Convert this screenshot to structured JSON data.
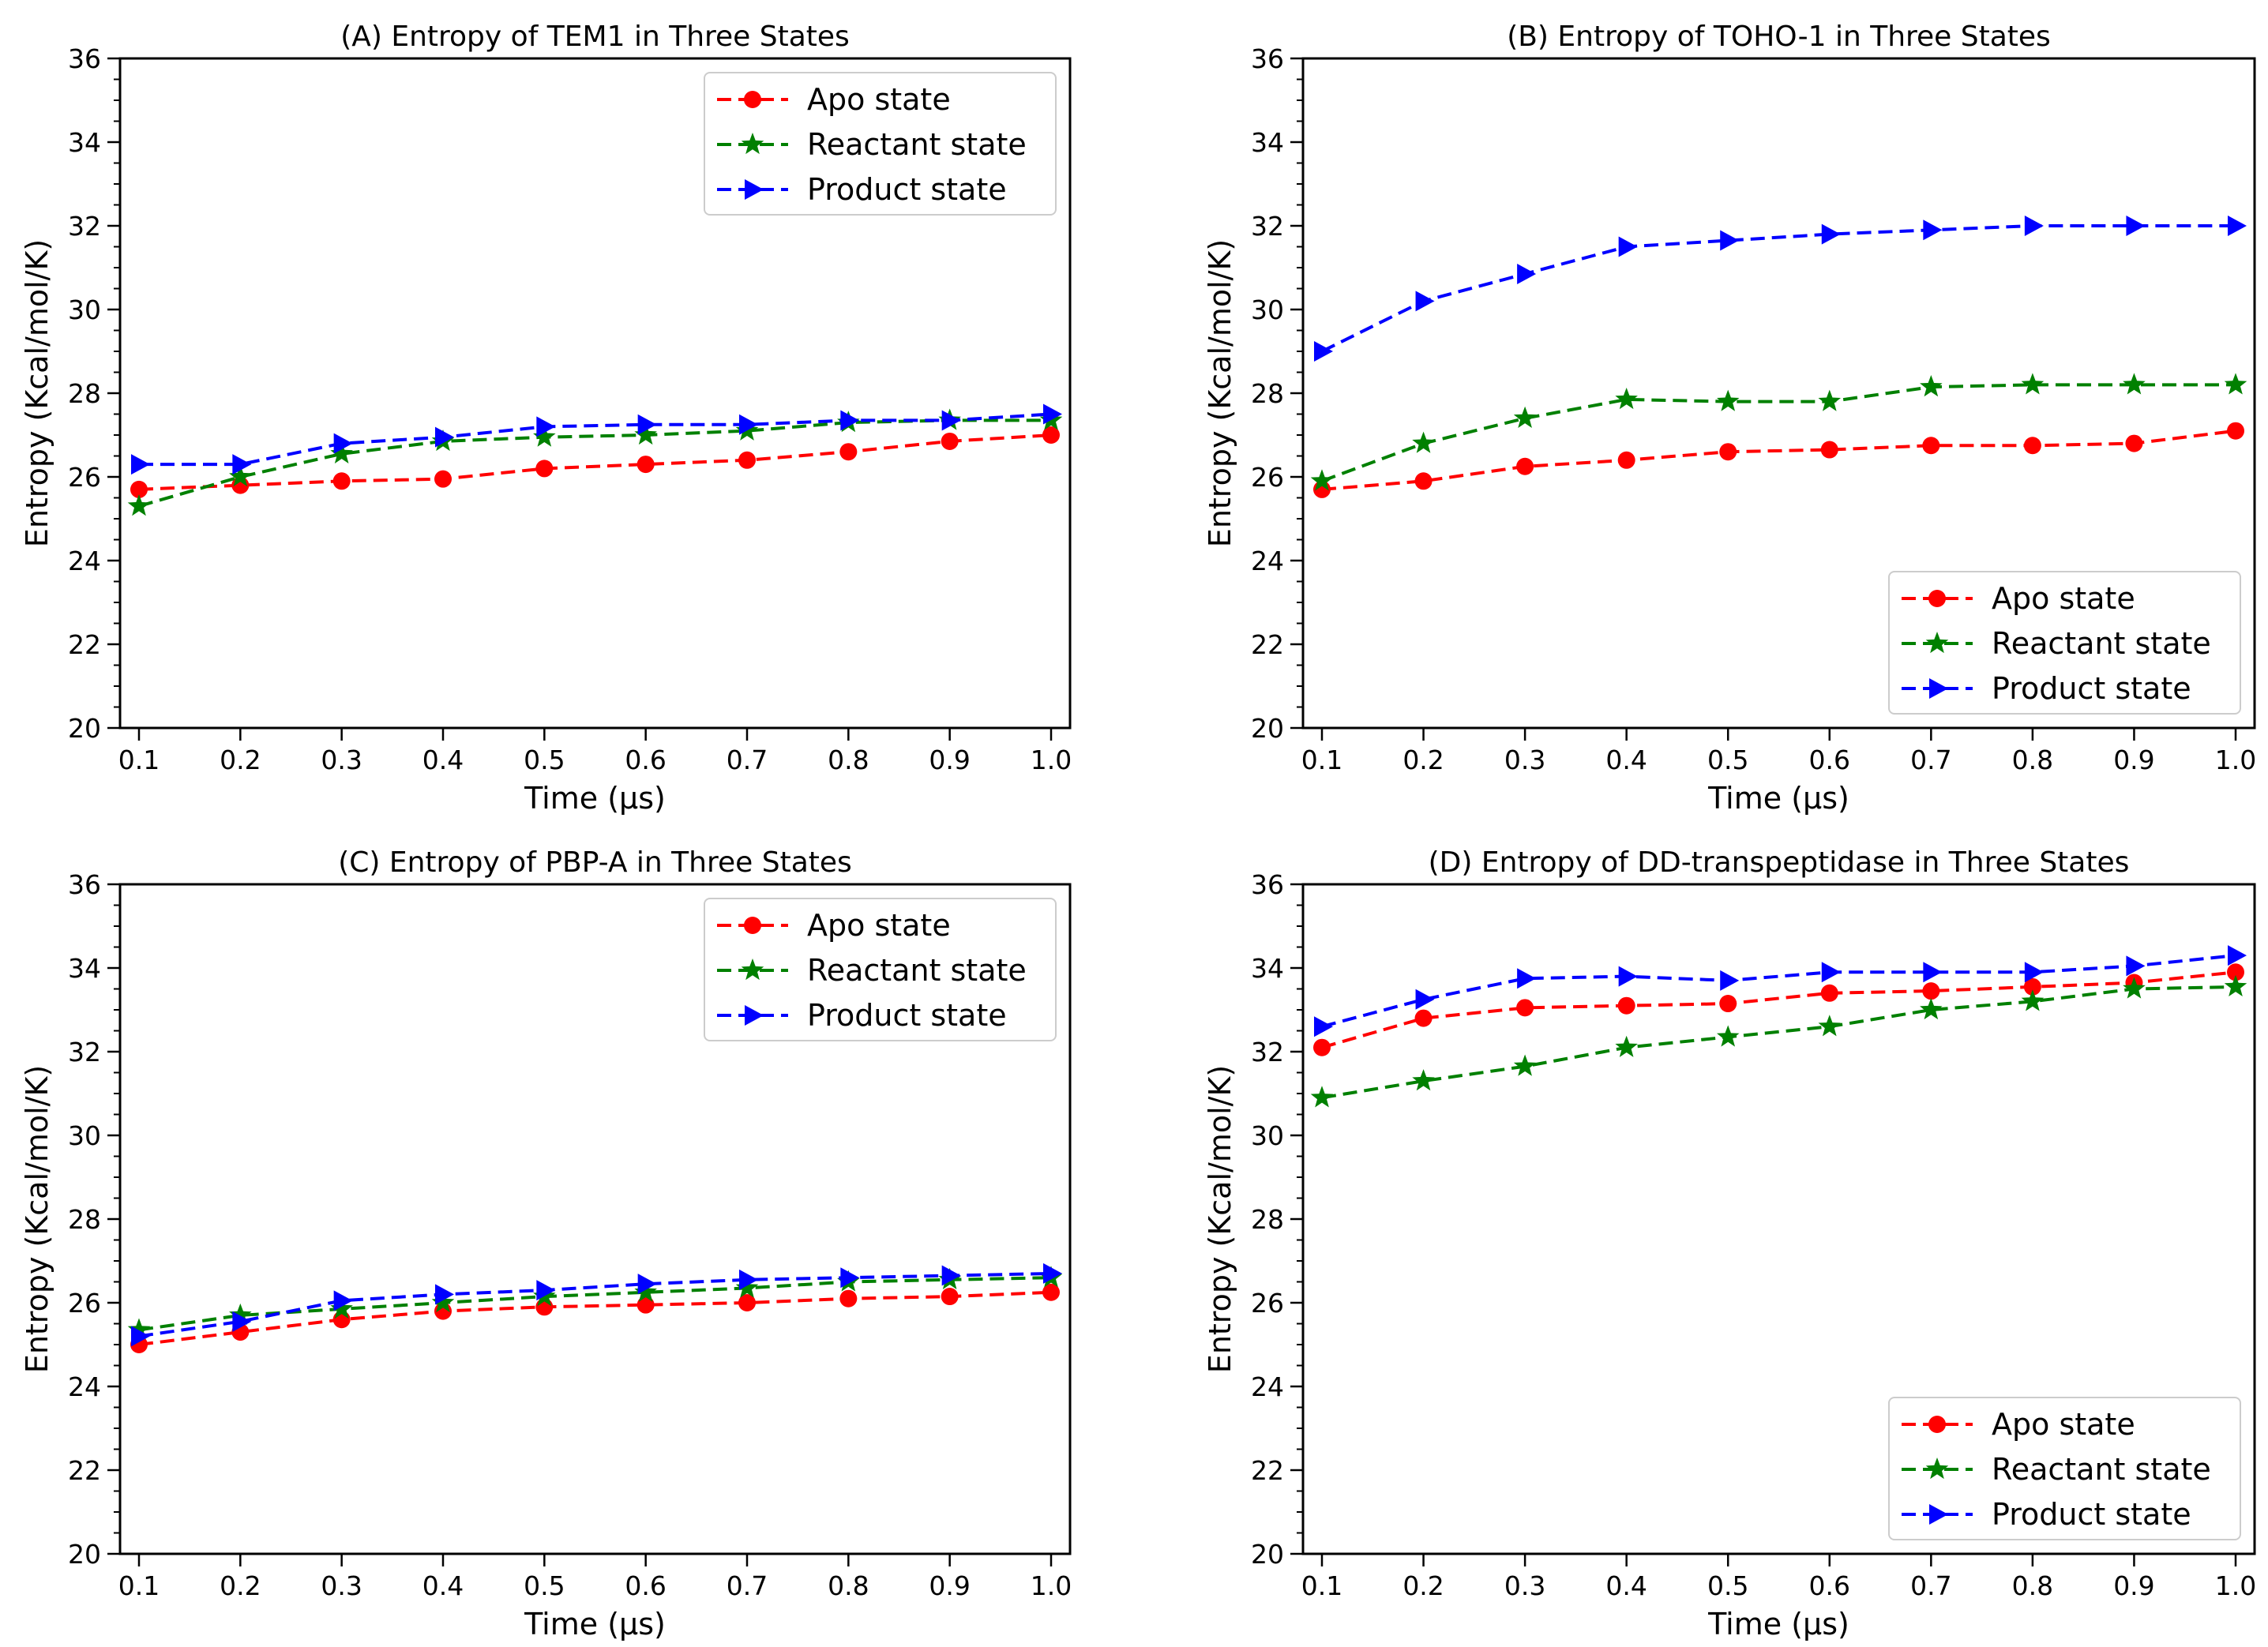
{
  "figure": {
    "x_label": "Time (µs)",
    "y_label": "Entropy (Kcal/mol/K)"
  },
  "series_styles": [
    {
      "key": "apo",
      "name": "Apo state",
      "color": "#ff0000",
      "marker": "circle"
    },
    {
      "key": "reactant",
      "name": "Reactant state",
      "color": "#008000",
      "marker": "star"
    },
    {
      "key": "product",
      "name": "Product state",
      "color": "#0000ff",
      "marker": "triangle-right"
    }
  ],
  "chart_data": [
    {
      "type": "line",
      "title": "(A) Entropy of TEM1 in Three States",
      "xlabel": "Time (µs)",
      "ylabel": "Entropy (Kcal/mol/K)",
      "x": [
        0.1,
        0.2,
        0.3,
        0.4,
        0.5,
        0.6,
        0.7,
        0.8,
        0.9,
        1.0
      ],
      "x_ticks": [
        "0.1",
        "0.2",
        "0.3",
        "0.4",
        "0.5",
        "0.6",
        "0.7",
        "0.8",
        "0.9",
        "1.0"
      ],
      "ylim": [
        20,
        36
      ],
      "y_ticks": [
        "20",
        "22",
        "24",
        "26",
        "28",
        "30",
        "32",
        "34",
        "36"
      ],
      "legend": "top-right",
      "series": [
        {
          "name": "Apo state",
          "values": [
            25.7,
            25.8,
            25.9,
            25.95,
            26.2,
            26.3,
            26.4,
            26.6,
            26.85,
            27.0
          ]
        },
        {
          "name": "Reactant state",
          "values": [
            25.3,
            26.0,
            26.55,
            26.85,
            26.95,
            27.0,
            27.1,
            27.3,
            27.35,
            27.35
          ]
        },
        {
          "name": "Product state",
          "values": [
            26.3,
            26.3,
            26.8,
            26.95,
            27.2,
            27.25,
            27.25,
            27.35,
            27.35,
            27.5
          ]
        }
      ]
    },
    {
      "type": "line",
      "title": "(B) Entropy of TOHO-1 in Three States",
      "xlabel": "Time (µs)",
      "ylabel": "Entropy (Kcal/mol/K)",
      "x": [
        0.1,
        0.2,
        0.3,
        0.4,
        0.5,
        0.6,
        0.7,
        0.8,
        0.9,
        1.0
      ],
      "x_ticks": [
        "0.1",
        "0.2",
        "0.3",
        "0.4",
        "0.5",
        "0.6",
        "0.7",
        "0.8",
        "0.9",
        "1.0"
      ],
      "ylim": [
        20,
        36
      ],
      "y_ticks": [
        "20",
        "22",
        "24",
        "26",
        "28",
        "30",
        "32",
        "34",
        "36"
      ],
      "legend": "bottom-right",
      "series": [
        {
          "name": "Apo state",
          "values": [
            25.7,
            25.9,
            26.25,
            26.4,
            26.6,
            26.65,
            26.75,
            26.75,
            26.8,
            27.1
          ]
        },
        {
          "name": "Reactant state",
          "values": [
            25.9,
            26.8,
            27.4,
            27.85,
            27.8,
            27.8,
            28.15,
            28.2,
            28.2,
            28.2
          ]
        },
        {
          "name": "Product state",
          "values": [
            29.0,
            30.2,
            30.85,
            31.5,
            31.65,
            31.8,
            31.9,
            32.0,
            32.0,
            32.0
          ]
        }
      ]
    },
    {
      "type": "line",
      "title": "(C) Entropy of PBP-A in Three States",
      "xlabel": "Time (µs)",
      "ylabel": "Entropy (Kcal/mol/K)",
      "x": [
        0.1,
        0.2,
        0.3,
        0.4,
        0.5,
        0.6,
        0.7,
        0.8,
        0.9,
        1.0
      ],
      "x_ticks": [
        "0.1",
        "0.2",
        "0.3",
        "0.4",
        "0.5",
        "0.6",
        "0.7",
        "0.8",
        "0.9",
        "1.0"
      ],
      "ylim": [
        20,
        36
      ],
      "y_ticks": [
        "20",
        "22",
        "24",
        "26",
        "28",
        "30",
        "32",
        "34",
        "36"
      ],
      "legend": "top-right",
      "series": [
        {
          "name": "Apo state",
          "values": [
            25.0,
            25.3,
            25.6,
            25.8,
            25.9,
            25.95,
            26.0,
            26.1,
            26.15,
            26.25
          ]
        },
        {
          "name": "Reactant state",
          "values": [
            25.35,
            25.7,
            25.85,
            26.0,
            26.15,
            26.25,
            26.35,
            26.5,
            26.55,
            26.6
          ]
        },
        {
          "name": "Product state",
          "values": [
            25.2,
            25.55,
            26.05,
            26.2,
            26.3,
            26.45,
            26.55,
            26.6,
            26.65,
            26.7
          ]
        }
      ]
    },
    {
      "type": "line",
      "title": "(D) Entropy of DD-transpeptidase in Three States",
      "xlabel": "Time (µs)",
      "ylabel": "Entropy (Kcal/mol/K)",
      "x": [
        0.1,
        0.2,
        0.3,
        0.4,
        0.5,
        0.6,
        0.7,
        0.8,
        0.9,
        1.0
      ],
      "x_ticks": [
        "0.1",
        "0.2",
        "0.3",
        "0.4",
        "0.5",
        "0.6",
        "0.7",
        "0.8",
        "0.9",
        "1.0"
      ],
      "ylim": [
        20,
        36
      ],
      "y_ticks": [
        "20",
        "22",
        "24",
        "26",
        "28",
        "30",
        "32",
        "34",
        "36"
      ],
      "legend": "bottom-right",
      "series": [
        {
          "name": "Apo state",
          "values": [
            32.1,
            32.8,
            33.05,
            33.1,
            33.15,
            33.4,
            33.45,
            33.55,
            33.65,
            33.9
          ]
        },
        {
          "name": "Reactant state",
          "values": [
            30.9,
            31.3,
            31.65,
            32.1,
            32.35,
            32.6,
            33.0,
            33.2,
            33.5,
            33.55
          ]
        },
        {
          "name": "Product state",
          "values": [
            32.6,
            33.25,
            33.75,
            33.8,
            33.7,
            33.9,
            33.9,
            33.9,
            34.05,
            34.3
          ]
        }
      ]
    }
  ]
}
